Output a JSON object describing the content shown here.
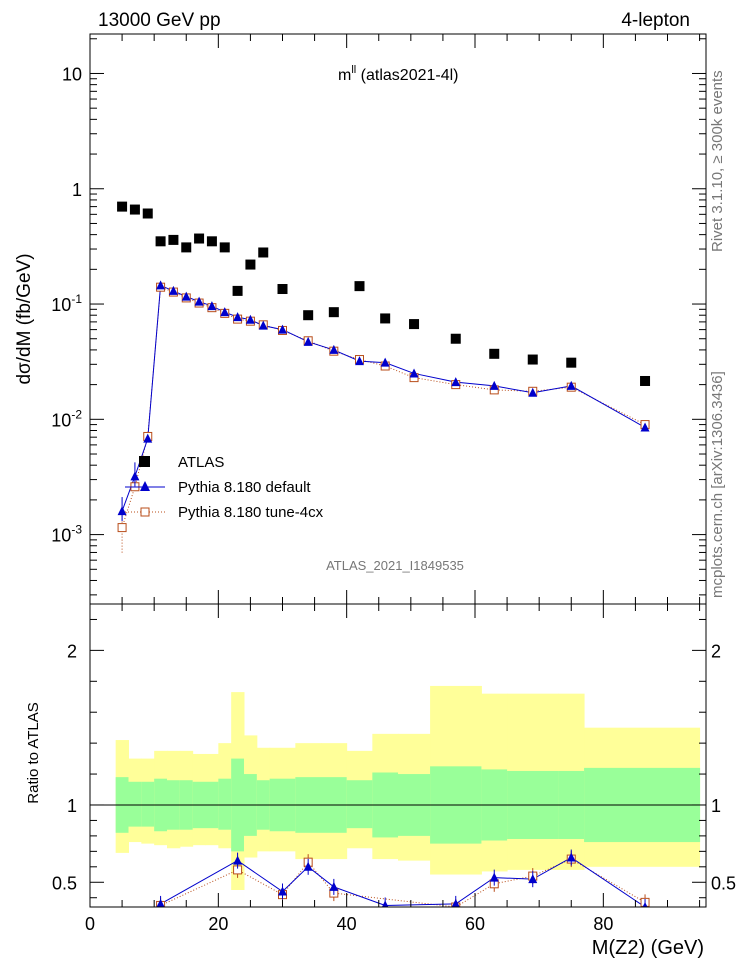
{
  "header": {
    "left": "13000 GeV pp",
    "right": "4-lepton"
  },
  "plot_title": "m",
  "plot_title_sup": "ll",
  "plot_title_rest": " (atlas2021-4l)",
  "side_labels": {
    "rivet": "Rivet 3.1.10, ≥ 300k events",
    "mcplots": "mcplots.cern.ch [arXiv:1306.3436]"
  },
  "analysis_id": "ATLAS_2021_I1849535",
  "legend": {
    "atlas": "ATLAS",
    "pythia_default": "Pythia 8.180 default",
    "pythia_tune": "Pythia 8.180 tune-4cx"
  },
  "colors": {
    "atlas": "#000000",
    "pythia_default": "#0000cc",
    "pythia_tune": "#b84d1a",
    "band_inner": "#99ff99",
    "band_outer": "#ffff99"
  },
  "chart_data": [
    {
      "type": "scatter",
      "panel": "main",
      "xlabel": "M(Z2) (GeV)",
      "ylabel": "dσ/dM (fb/GeV)",
      "yscale": "log",
      "xlim": [
        0,
        96
      ],
      "ylim": [
        0.00025,
        22
      ],
      "x_ticks": [
        "0",
        "20",
        "40",
        "60",
        "80"
      ],
      "y_ticks": [
        "10",
        "1",
        "10^-1",
        "10^-2",
        "10^-3"
      ],
      "series": [
        {
          "name": "ATLAS",
          "x": [
            5,
            7,
            9,
            11,
            13,
            15,
            17,
            19,
            21,
            23,
            25,
            27,
            30,
            34,
            38,
            42,
            46,
            50.5,
            57,
            63,
            69,
            75,
            86.5
          ],
          "y": [
            0.7,
            0.66,
            0.61,
            0.35,
            0.36,
            0.31,
            0.37,
            0.35,
            0.31,
            0.13,
            0.22,
            0.28,
            0.135,
            0.08,
            0.085,
            0.143,
            0.075,
            0.067,
            0.05,
            0.037,
            0.033,
            0.031,
            0.0215
          ]
        },
        {
          "name": "Pythia 8.180 default",
          "x": [
            5,
            7,
            9,
            11,
            13,
            15,
            17,
            19,
            21,
            23,
            25,
            27,
            30,
            34,
            38,
            42,
            46,
            50.5,
            57,
            63,
            69,
            75,
            86.5
          ],
          "y": [
            0.0016,
            0.0032,
            0.0068,
            0.145,
            0.13,
            0.116,
            0.105,
            0.096,
            0.085,
            0.077,
            0.073,
            0.065,
            0.06,
            0.047,
            0.04,
            0.032,
            0.031,
            0.025,
            0.021,
            0.0195,
            0.017,
            0.0195,
            0.0085
          ]
        },
        {
          "name": "Pythia 8.180 tune-4cx",
          "x": [
            5,
            7,
            9,
            11,
            13,
            15,
            17,
            19,
            21,
            23,
            25,
            27,
            30,
            34,
            38,
            42,
            46,
            50.5,
            57,
            63,
            69,
            75,
            86.5
          ],
          "y": [
            0.00115,
            0.0026,
            0.0071,
            0.14,
            0.127,
            0.113,
            0.102,
            0.093,
            0.083,
            0.074,
            0.071,
            0.066,
            0.059,
            0.048,
            0.039,
            0.033,
            0.029,
            0.023,
            0.02,
            0.018,
            0.0175,
            0.019,
            0.009
          ]
        }
      ]
    },
    {
      "type": "scatter",
      "panel": "ratio",
      "xlabel": "M(Z2) (GeV)",
      "ylabel": "Ratio to ATLAS",
      "xlim": [
        0,
        96
      ],
      "ylim": [
        0.34,
        2.3
      ],
      "y_ticks": [
        "2",
        "1",
        "0.5"
      ],
      "reference_line": 1,
      "bands": {
        "edges": [
          4,
          6,
          8,
          10,
          12,
          14,
          16,
          18,
          20,
          22,
          24,
          26,
          28,
          32,
          36,
          40,
          44,
          48,
          53,
          61,
          65,
          73,
          77,
          95
        ],
        "inner_low": [
          0.82,
          0.86,
          0.86,
          0.83,
          0.84,
          0.84,
          0.85,
          0.85,
          0.84,
          0.7,
          0.8,
          0.84,
          0.83,
          0.82,
          0.82,
          0.85,
          0.79,
          0.8,
          0.75,
          0.77,
          0.78,
          0.78,
          0.76
        ],
        "inner_high": [
          1.18,
          1.15,
          1.15,
          1.17,
          1.16,
          1.16,
          1.15,
          1.15,
          1.17,
          1.3,
          1.2,
          1.16,
          1.17,
          1.18,
          1.18,
          1.16,
          1.21,
          1.2,
          1.25,
          1.23,
          1.22,
          1.22,
          1.24
        ],
        "outer_low": [
          0.69,
          0.76,
          0.75,
          0.74,
          0.72,
          0.73,
          0.74,
          0.74,
          0.72,
          0.45,
          0.66,
          0.7,
          0.7,
          0.65,
          0.65,
          0.72,
          0.65,
          0.64,
          0.55,
          0.57,
          0.58,
          0.58,
          0.6
        ],
        "outer_high": [
          1.42,
          1.3,
          1.3,
          1.35,
          1.35,
          1.35,
          1.33,
          1.33,
          1.4,
          1.73,
          1.45,
          1.37,
          1.37,
          1.4,
          1.4,
          1.35,
          1.46,
          1.46,
          1.77,
          1.72,
          1.72,
          1.72,
          1.5
        ]
      },
      "series": [
        {
          "name": "Pythia 8.180 default",
          "x": [
            11,
            23,
            30,
            34,
            38,
            46,
            57,
            63,
            69,
            75,
            86.5
          ],
          "y": [
            0.36,
            0.64,
            0.44,
            0.6,
            0.47,
            0.35,
            0.36,
            0.53,
            0.52,
            0.66,
            0.34
          ]
        },
        {
          "name": "Pythia 8.180 tune-4cx",
          "x": [
            11,
            23,
            30,
            34,
            38,
            57,
            63,
            69,
            75,
            86.5
          ],
          "y": [
            0.35,
            0.58,
            0.42,
            0.63,
            0.43,
            0.34,
            0.49,
            0.54,
            0.65,
            0.37
          ]
        }
      ]
    }
  ]
}
